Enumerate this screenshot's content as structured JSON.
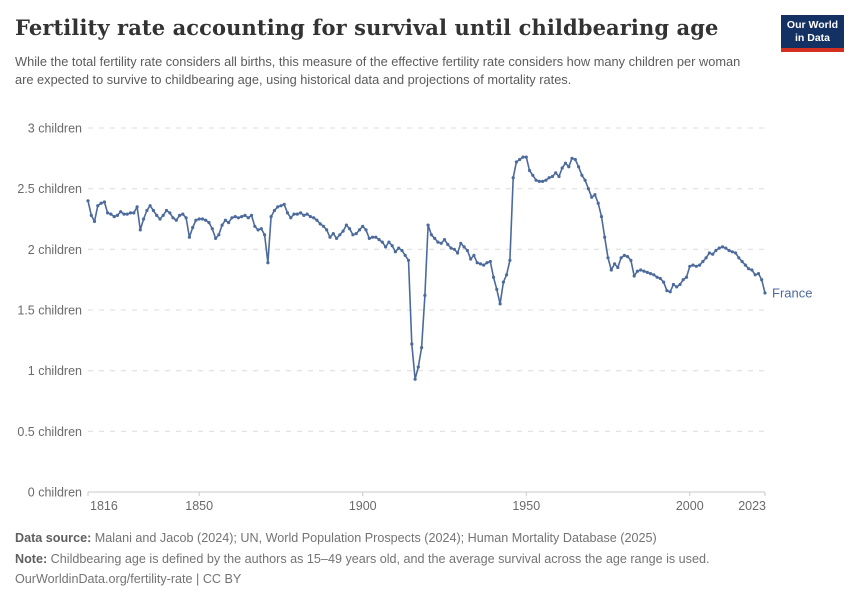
{
  "header": {
    "title": "Fertility rate accounting for survival until childbearing age",
    "subtitle": "While the total fertility rate considers all births, this measure of the effective fertility rate considers how many children per woman are expected to survive to childbearing age, using historical data and projections of mortality rates.",
    "logo": {
      "line1": "Our World",
      "line2": "in Data",
      "bg_color": "#143164",
      "accent_color": "#d5301f"
    }
  },
  "chart_data": {
    "type": "line",
    "title": "Fertility rate accounting for survival until childbearing age",
    "unit": "children",
    "entity": "France",
    "xlim": [
      1816,
      2023
    ],
    "ylim": [
      0,
      3
    ],
    "grid": "dashed-horizontal",
    "legend_position": "end-of-line-label",
    "xticks": [
      1816,
      1850,
      1900,
      1950,
      2000,
      2023
    ],
    "yticks": [
      {
        "value": 0,
        "label": "0 children"
      },
      {
        "value": 0.5,
        "label": "0.5 children"
      },
      {
        "value": 1,
        "label": "1 children"
      },
      {
        "value": 1.5,
        "label": "1.5 children"
      },
      {
        "value": 2,
        "label": "2 children"
      },
      {
        "value": 2.5,
        "label": "2.5 children"
      },
      {
        "value": 3,
        "label": "3 children"
      }
    ],
    "series": [
      {
        "name": "France",
        "color": "#4c6a9c",
        "markers": true,
        "points": [
          [
            1816,
            2.4
          ],
          [
            1817,
            2.28
          ],
          [
            1818,
            2.23
          ],
          [
            1819,
            2.36
          ],
          [
            1820,
            2.38
          ],
          [
            1821,
            2.39
          ],
          [
            1822,
            2.3
          ],
          [
            1823,
            2.29
          ],
          [
            1824,
            2.27
          ],
          [
            1825,
            2.28
          ],
          [
            1826,
            2.31
          ],
          [
            1827,
            2.29
          ],
          [
            1828,
            2.29
          ],
          [
            1829,
            2.3
          ],
          [
            1830,
            2.3
          ],
          [
            1831,
            2.35
          ],
          [
            1832,
            2.16
          ],
          [
            1833,
            2.25
          ],
          [
            1834,
            2.32
          ],
          [
            1835,
            2.36
          ],
          [
            1836,
            2.32
          ],
          [
            1837,
            2.28
          ],
          [
            1838,
            2.25
          ],
          [
            1839,
            2.28
          ],
          [
            1840,
            2.32
          ],
          [
            1841,
            2.3
          ],
          [
            1842,
            2.26
          ],
          [
            1843,
            2.24
          ],
          [
            1844,
            2.28
          ],
          [
            1845,
            2.29
          ],
          [
            1846,
            2.26
          ],
          [
            1847,
            2.1
          ],
          [
            1848,
            2.18
          ],
          [
            1849,
            2.24
          ],
          [
            1850,
            2.25
          ],
          [
            1851,
            2.25
          ],
          [
            1852,
            2.24
          ],
          [
            1853,
            2.22
          ],
          [
            1854,
            2.17
          ],
          [
            1855,
            2.09
          ],
          [
            1856,
            2.12
          ],
          [
            1857,
            2.2
          ],
          [
            1858,
            2.24
          ],
          [
            1859,
            2.22
          ],
          [
            1860,
            2.26
          ],
          [
            1861,
            2.27
          ],
          [
            1862,
            2.26
          ],
          [
            1863,
            2.27
          ],
          [
            1864,
            2.28
          ],
          [
            1865,
            2.26
          ],
          [
            1866,
            2.28
          ],
          [
            1867,
            2.19
          ],
          [
            1868,
            2.16
          ],
          [
            1869,
            2.17
          ],
          [
            1870,
            2.12
          ],
          [
            1871,
            1.89
          ],
          [
            1872,
            2.27
          ],
          [
            1873,
            2.32
          ],
          [
            1874,
            2.35
          ],
          [
            1875,
            2.36
          ],
          [
            1876,
            2.37
          ],
          [
            1877,
            2.3
          ],
          [
            1878,
            2.26
          ],
          [
            1879,
            2.29
          ],
          [
            1880,
            2.29
          ],
          [
            1881,
            2.3
          ],
          [
            1882,
            2.28
          ],
          [
            1883,
            2.29
          ],
          [
            1884,
            2.27
          ],
          [
            1885,
            2.26
          ],
          [
            1886,
            2.24
          ],
          [
            1887,
            2.21
          ],
          [
            1888,
            2.19
          ],
          [
            1889,
            2.16
          ],
          [
            1890,
            2.1
          ],
          [
            1891,
            2.13
          ],
          [
            1892,
            2.09
          ],
          [
            1893,
            2.12
          ],
          [
            1894,
            2.15
          ],
          [
            1895,
            2.2
          ],
          [
            1896,
            2.17
          ],
          [
            1897,
            2.12
          ],
          [
            1898,
            2.13
          ],
          [
            1899,
            2.16
          ],
          [
            1900,
            2.19
          ],
          [
            1901,
            2.16
          ],
          [
            1902,
            2.09
          ],
          [
            1903,
            2.1
          ],
          [
            1904,
            2.1
          ],
          [
            1905,
            2.08
          ],
          [
            1906,
            2.06
          ],
          [
            1907,
            2.02
          ],
          [
            1908,
            2.06
          ],
          [
            1909,
            2.03
          ],
          [
            1910,
            1.98
          ],
          [
            1911,
            2.01
          ],
          [
            1912,
            1.99
          ],
          [
            1913,
            1.95
          ],
          [
            1914,
            1.91
          ],
          [
            1915,
            1.22
          ],
          [
            1916,
            0.93
          ],
          [
            1917,
            1.03
          ],
          [
            1918,
            1.19
          ],
          [
            1919,
            1.62
          ],
          [
            1920,
            2.2
          ],
          [
            1921,
            2.12
          ],
          [
            1922,
            2.09
          ],
          [
            1923,
            2.06
          ],
          [
            1924,
            2.05
          ],
          [
            1925,
            2.08
          ],
          [
            1926,
            2.04
          ],
          [
            1927,
            2.01
          ],
          [
            1928,
            2.0
          ],
          [
            1929,
            1.97
          ],
          [
            1930,
            2.05
          ],
          [
            1931,
            2.02
          ],
          [
            1932,
            1.99
          ],
          [
            1933,
            1.92
          ],
          [
            1934,
            1.95
          ],
          [
            1935,
            1.89
          ],
          [
            1936,
            1.88
          ],
          [
            1937,
            1.87
          ],
          [
            1938,
            1.89
          ],
          [
            1939,
            1.9
          ],
          [
            1940,
            1.77
          ],
          [
            1941,
            1.67
          ],
          [
            1942,
            1.55
          ],
          [
            1943,
            1.73
          ],
          [
            1944,
            1.79
          ],
          [
            1945,
            1.91
          ],
          [
            1946,
            2.59
          ],
          [
            1947,
            2.72
          ],
          [
            1948,
            2.74
          ],
          [
            1949,
            2.76
          ],
          [
            1950,
            2.76
          ],
          [
            1951,
            2.65
          ],
          [
            1952,
            2.61
          ],
          [
            1953,
            2.57
          ],
          [
            1954,
            2.56
          ],
          [
            1955,
            2.56
          ],
          [
            1956,
            2.57
          ],
          [
            1957,
            2.59
          ],
          [
            1958,
            2.6
          ],
          [
            1959,
            2.63
          ],
          [
            1960,
            2.6
          ],
          [
            1961,
            2.67
          ],
          [
            1962,
            2.71
          ],
          [
            1963,
            2.68
          ],
          [
            1964,
            2.75
          ],
          [
            1965,
            2.74
          ],
          [
            1966,
            2.68
          ],
          [
            1967,
            2.61
          ],
          [
            1968,
            2.57
          ],
          [
            1969,
            2.5
          ],
          [
            1970,
            2.43
          ],
          [
            1971,
            2.45
          ],
          [
            1972,
            2.38
          ],
          [
            1973,
            2.27
          ],
          [
            1974,
            2.1
          ],
          [
            1975,
            1.93
          ],
          [
            1976,
            1.83
          ],
          [
            1977,
            1.88
          ],
          [
            1978,
            1.85
          ],
          [
            1979,
            1.93
          ],
          [
            1980,
            1.95
          ],
          [
            1981,
            1.94
          ],
          [
            1982,
            1.91
          ],
          [
            1983,
            1.78
          ],
          [
            1984,
            1.82
          ],
          [
            1985,
            1.83
          ],
          [
            1986,
            1.82
          ],
          [
            1987,
            1.81
          ],
          [
            1988,
            1.8
          ],
          [
            1989,
            1.79
          ],
          [
            1990,
            1.77
          ],
          [
            1991,
            1.76
          ],
          [
            1992,
            1.73
          ],
          [
            1993,
            1.66
          ],
          [
            1994,
            1.65
          ],
          [
            1995,
            1.71
          ],
          [
            1996,
            1.69
          ],
          [
            1997,
            1.71
          ],
          [
            1998,
            1.75
          ],
          [
            1999,
            1.77
          ],
          [
            2000,
            1.86
          ],
          [
            2001,
            1.87
          ],
          [
            2002,
            1.86
          ],
          [
            2003,
            1.87
          ],
          [
            2004,
            1.9
          ],
          [
            2005,
            1.93
          ],
          [
            2006,
            1.97
          ],
          [
            2007,
            1.96
          ],
          [
            2008,
            1.99
          ],
          [
            2009,
            2.01
          ],
          [
            2010,
            2.02
          ],
          [
            2011,
            2.01
          ],
          [
            2012,
            1.99
          ],
          [
            2013,
            1.98
          ],
          [
            2014,
            1.97
          ],
          [
            2015,
            1.93
          ],
          [
            2016,
            1.9
          ],
          [
            2017,
            1.87
          ],
          [
            2018,
            1.84
          ],
          [
            2019,
            1.83
          ],
          [
            2020,
            1.79
          ],
          [
            2021,
            1.8
          ],
          [
            2022,
            1.75
          ],
          [
            2023,
            1.64
          ]
        ]
      }
    ]
  },
  "footer": {
    "datasource_label": "Data source:",
    "datasource_text": " Malani and Jacob (2024); UN, World Population Prospects (2024); Human Mortality Database (2025)",
    "note_label": "Note:",
    "note_text": " Childbearing age is defined by the authors as 15–49 years old, and the average survival across the age range is used.",
    "url_text": "OurWorldinData.org/fertility-rate",
    "separator": " | ",
    "license_text": "CC BY"
  }
}
